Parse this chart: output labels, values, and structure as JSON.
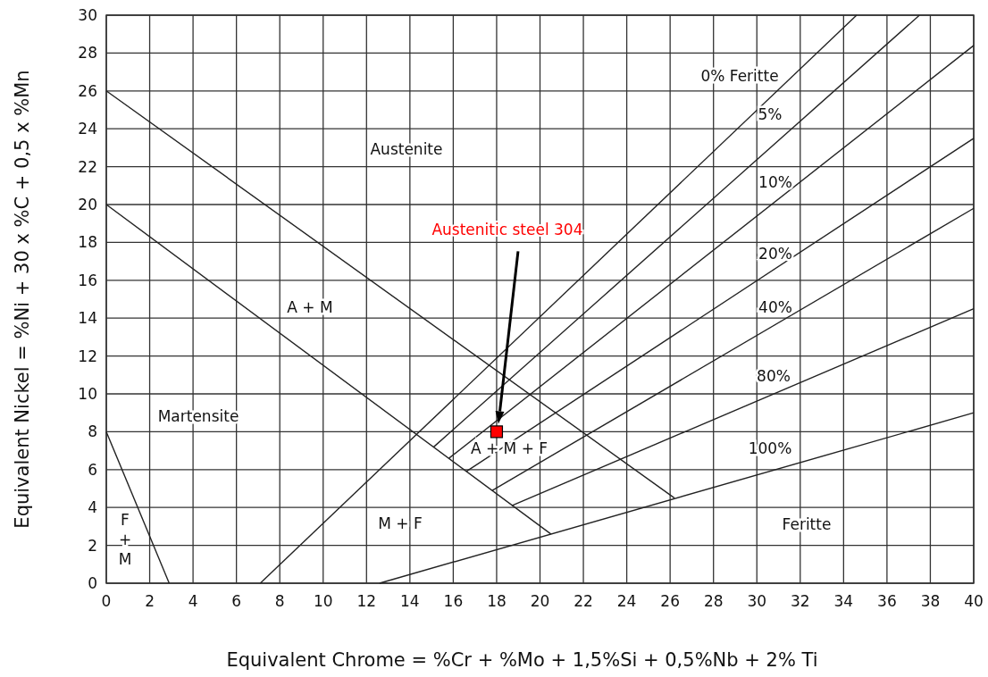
{
  "chart_data": {
    "type": "line",
    "xlabel": "Equivalent Chrome = %Cr + %Mo + 1,5%Si + 0,5%Nb + 2% Ti",
    "ylabel": "Equivalent Nickel = %Ni + 30 x %C + 0,5 x %Mn",
    "xlim": [
      0,
      40
    ],
    "xticks": [
      0,
      2,
      4,
      6,
      8,
      10,
      12,
      14,
      16,
      18,
      20,
      22,
      24,
      26,
      28,
      30,
      32,
      34,
      36,
      38,
      40
    ],
    "ylim": [
      0,
      30
    ],
    "yticks": [
      0,
      2,
      4,
      6,
      8,
      10,
      12,
      14,
      16,
      18,
      20,
      22,
      24,
      26,
      28,
      30
    ],
    "grid": true,
    "series": [
      {
        "color": "#222222",
        "x": [
          0,
          26.2
        ],
        "values": [
          26,
          4.5
        ]
      },
      {
        "color": "#222222",
        "x": [
          0,
          20.5
        ],
        "values": [
          20,
          2.6
        ]
      },
      {
        "color": "#222222",
        "x": [
          0,
          2.9
        ],
        "values": [
          8,
          0
        ]
      },
      {
        "color": "#222222",
        "x": [
          7.1,
          34.6
        ],
        "values": [
          0,
          30
        ]
      },
      {
        "color": "#222222",
        "x": [
          15.1,
          37.5
        ],
        "values": [
          7.2,
          30
        ]
      },
      {
        "color": "#222222",
        "x": [
          15.8,
          40
        ],
        "values": [
          6.6,
          28.4
        ]
      },
      {
        "color": "#222222",
        "x": [
          16.6,
          40
        ],
        "values": [
          5.9,
          23.5
        ]
      },
      {
        "color": "#222222",
        "x": [
          17.8,
          40
        ],
        "values": [
          4.9,
          19.8
        ]
      },
      {
        "color": "#222222",
        "x": [
          18.7,
          40
        ],
        "values": [
          4.1,
          14.5
        ]
      },
      {
        "color": "#222222",
        "x": [
          12.6,
          40
        ],
        "values": [
          0,
          9.0
        ]
      },
      {
        "type": "scatter",
        "name": "Austenitic steel 304",
        "color": "#ff0000",
        "marker": "square",
        "x": [
          18
        ],
        "values": [
          8
        ]
      }
    ],
    "annotations": [
      "0% Feritte",
      "5%",
      "10%",
      "20%",
      "40%",
      "80%",
      "100%",
      "Feritte",
      "Austenite",
      "A + M",
      "Martensite",
      "A + M + F",
      "M + F",
      "F\n+\nM"
    ]
  }
}
